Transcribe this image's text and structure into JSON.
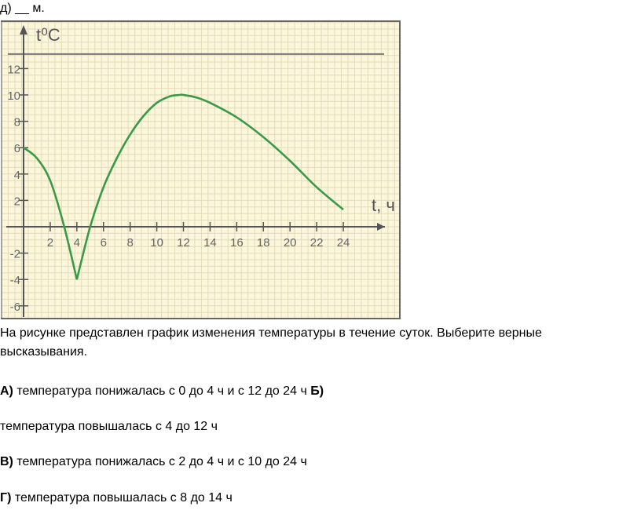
{
  "header": "д) __ м.",
  "chart_data": {
    "type": "line",
    "ylabel": "t⁰C",
    "xlabel": "t, ч",
    "x_ticks": [
      2,
      4,
      6,
      8,
      10,
      12,
      14,
      16,
      18,
      20,
      22,
      24
    ],
    "y_ticks": [
      12,
      10,
      8,
      6,
      4,
      2,
      -2,
      -4,
      -6
    ],
    "xlim": [
      0,
      27
    ],
    "ylim": [
      -6,
      13.5
    ],
    "grid": true,
    "reference_line_y": 13.1,
    "line_color": "#3a9a4a",
    "background_color": "#fbf6dc",
    "x": [
      0,
      1,
      2,
      3,
      4,
      5,
      6,
      7,
      8,
      9,
      10,
      11,
      11.7,
      12,
      13,
      14,
      16,
      18,
      20,
      22,
      24
    ],
    "y": [
      6,
      5.2,
      3.5,
      0.2,
      -4,
      0,
      3,
      5.2,
      7,
      8.4,
      9.4,
      9.9,
      10,
      10,
      9.8,
      9.4,
      8.3,
      6.8,
      5,
      3,
      1.3
    ]
  },
  "question": {
    "text_line1": "На рисунке представлен график изменения температуры в течение суток. Выберите верные",
    "text_line2": "высказывания.",
    "options": [
      {
        "letter": "А)",
        "text": " температура понижалась с 0 до 4 ч и с 12 до 24 ч ",
        "extra_letter": "Б)"
      },
      {
        "letter": "",
        "text": "температура повышалась с 4 до 12 ч"
      },
      {
        "letter": "В)",
        "text": " температура понижалась с 2 до 4 ч и с 10 до 24 ч"
      },
      {
        "letter": "Г)",
        "text": " температура повышалась с 8 до 14 ч"
      }
    ]
  }
}
